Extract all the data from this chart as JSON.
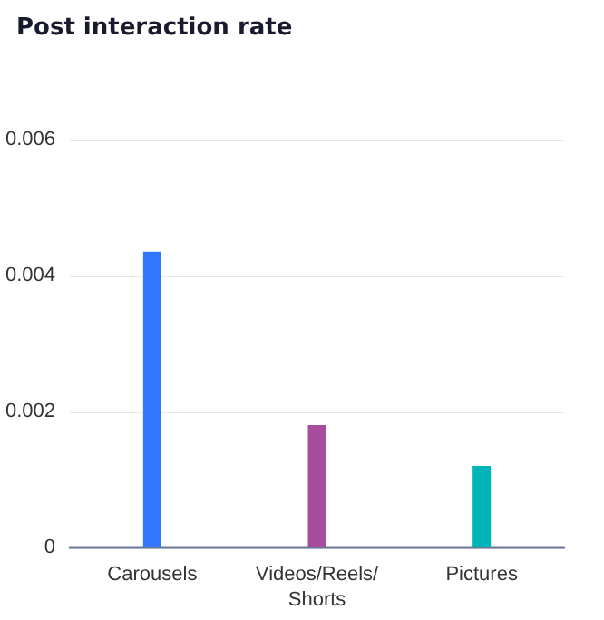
{
  "chart_data": {
    "type": "bar",
    "title": "Post interaction rate",
    "categories": [
      "Carousels",
      "Videos/Reels/Shorts",
      "Pictures"
    ],
    "values": [
      0.00435,
      0.0018,
      0.0012
    ],
    "colors": [
      "#3377ff",
      "#a64d9e",
      "#00b5b8"
    ],
    "ylim": [
      0,
      0.006
    ],
    "yticks": [
      0,
      0.002,
      0.004,
      0.006
    ],
    "grid": "y"
  }
}
